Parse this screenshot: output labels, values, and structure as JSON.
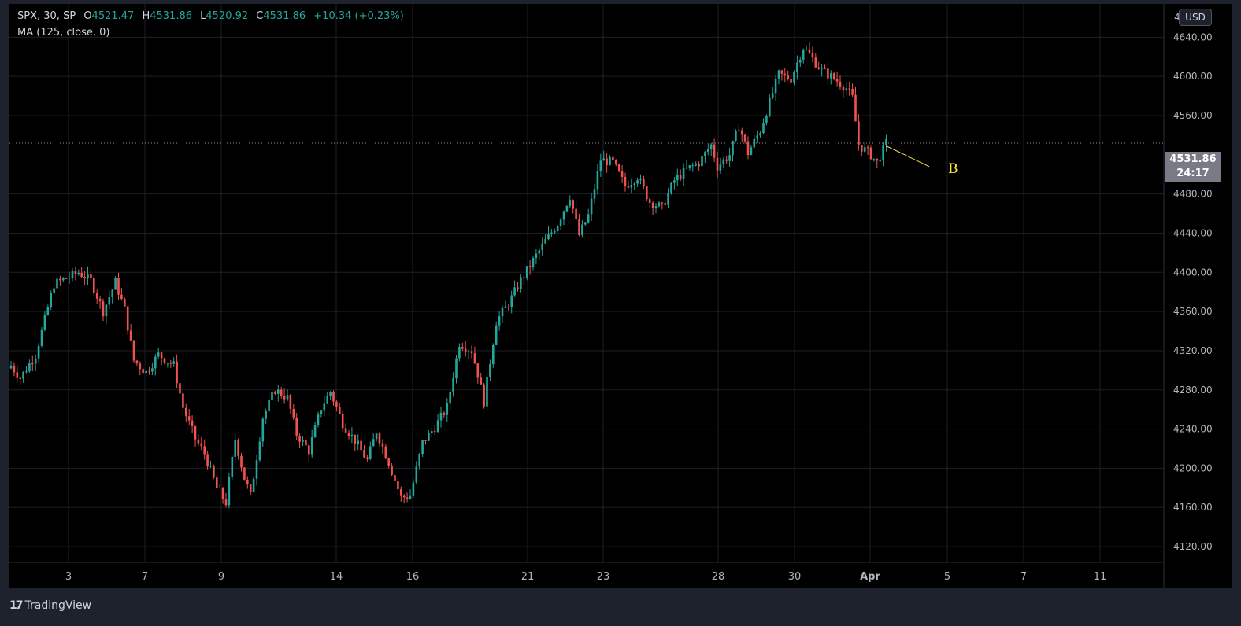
{
  "legend": {
    "symbol_line": "SPX, 30, SP",
    "open_label": "O",
    "open": "4521.47",
    "high_label": "H",
    "high": "4531.86",
    "low_label": "L",
    "low": "4520.92",
    "close_label": "C",
    "close": "4531.86",
    "change": "+10.34 (+0.23%)",
    "indicator": "MA (125, close, 0)"
  },
  "currency": "USD",
  "price_label": {
    "price": "4531.86",
    "countdown": "24:17"
  },
  "brand": {
    "name": "TradingView",
    "logo": "17"
  },
  "annotation": {
    "label": "B"
  },
  "colors": {
    "background": "#000000",
    "up": "#26a69a",
    "down": "#ef5350",
    "annotation": "#f5e342"
  },
  "chart_data": {
    "type": "candlestick",
    "title": "",
    "ylim": [
      4104,
      4674
    ],
    "y_ticks": [
      4640,
      4600,
      4560,
      4480,
      4440,
      4400,
      4360,
      4320,
      4280,
      4240,
      4200,
      4160,
      4120
    ],
    "y_tick_labels": [
      "4640.00",
      "4600.00",
      "4560.00",
      "4480.00",
      "4440.00",
      "4400.00",
      "4360.00",
      "4320.00",
      "4280.00",
      "4240.00",
      "4200.00",
      "4160.00",
      "4120.00"
    ],
    "x_ticks": [
      "3",
      "7",
      "9",
      "14",
      "16",
      "21",
      "23",
      "28",
      "30",
      "Apr",
      "5",
      "7",
      "11"
    ],
    "last_price": 4531.86,
    "grid": true,
    "path": [
      [
        0,
        4305
      ],
      [
        3,
        4292
      ],
      [
        8,
        4316
      ],
      [
        14,
        4388
      ],
      [
        22,
        4400
      ],
      [
        26,
        4392
      ],
      [
        30,
        4360
      ],
      [
        34,
        4390
      ],
      [
        37,
        4362
      ],
      [
        40,
        4310
      ],
      [
        44,
        4298
      ],
      [
        48,
        4316
      ],
      [
        53,
        4305
      ],
      [
        56,
        4262
      ],
      [
        60,
        4230
      ],
      [
        63,
        4215
      ],
      [
        67,
        4180
      ],
      [
        70,
        4165
      ],
      [
        73,
        4230
      ],
      [
        76,
        4190
      ],
      [
        78,
        4172
      ],
      [
        82,
        4252
      ],
      [
        86,
        4280
      ],
      [
        90,
        4272
      ],
      [
        93,
        4235
      ],
      [
        97,
        4218
      ],
      [
        101,
        4262
      ],
      [
        104,
        4278
      ],
      [
        108,
        4246
      ],
      [
        112,
        4228
      ],
      [
        116,
        4208
      ],
      [
        119,
        4238
      ],
      [
        123,
        4206
      ],
      [
        127,
        4170
      ],
      [
        130,
        4172
      ],
      [
        134,
        4226
      ],
      [
        138,
        4242
      ],
      [
        142,
        4262
      ],
      [
        146,
        4328
      ],
      [
        150,
        4320
      ],
      [
        152,
        4296
      ],
      [
        154,
        4268
      ],
      [
        158,
        4350
      ],
      [
        162,
        4368
      ],
      [
        166,
        4392
      ],
      [
        170,
        4412
      ],
      [
        174,
        4432
      ],
      [
        178,
        4450
      ],
      [
        182,
        4478
      ],
      [
        185,
        4438
      ],
      [
        188,
        4458
      ],
      [
        192,
        4515
      ],
      [
        196,
        4512
      ],
      [
        200,
        4488
      ],
      [
        204,
        4498
      ],
      [
        208,
        4472
      ],
      [
        212,
        4466
      ],
      [
        216,
        4494
      ],
      [
        220,
        4505
      ],
      [
        224,
        4512
      ],
      [
        228,
        4530
      ],
      [
        230,
        4508
      ],
      [
        234,
        4520
      ],
      [
        237,
        4550
      ],
      [
        240,
        4522
      ],
      [
        244,
        4545
      ],
      [
        247,
        4574
      ],
      [
        250,
        4602
      ],
      [
        254,
        4598
      ],
      [
        258,
        4630
      ],
      [
        261,
        4618
      ],
      [
        264,
        4606
      ],
      [
        268,
        4598
      ],
      [
        272,
        4588
      ],
      [
        274,
        4578
      ],
      [
        276,
        4530
      ],
      [
        280,
        4520
      ],
      [
        282,
        4512
      ],
      [
        285,
        4532
      ]
    ],
    "projection": {
      "label": "B",
      "from_x": 285,
      "from_y": 4529,
      "to_x": 299,
      "to_y": 4508
    }
  }
}
